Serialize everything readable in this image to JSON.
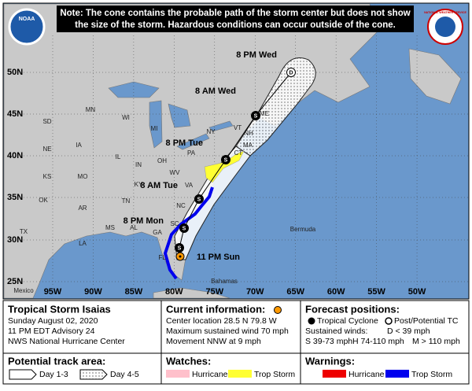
{
  "header": {
    "note_lines": [
      "Note: The cone contains the probable path of the storm center but does not show",
      "the size of the storm. Hazardous conditions can occur outside of the cone."
    ],
    "left_logo": "NOAA",
    "right_logo": "NATIONAL WEATHER SERVICE"
  },
  "map": {
    "lat_labels": [
      "50N",
      "45N",
      "40N",
      "35N",
      "30N",
      "25N"
    ],
    "lon_labels": [
      "95W",
      "90W",
      "85W",
      "80W",
      "75W",
      "70W",
      "65W",
      "60W",
      "55W",
      "50W"
    ],
    "places": [
      "MN",
      "WI",
      "MI",
      "SD",
      "NE",
      "IA",
      "IL",
      "IN",
      "OH",
      "KS",
      "MO",
      "KY",
      "WV",
      "VA",
      "OK",
      "AR",
      "TN",
      "NC",
      "SC",
      "GA",
      "AL",
      "MS",
      "LA",
      "TX",
      "FL",
      "PA",
      "NY",
      "VT",
      "NH",
      "ME",
      "MA",
      "CT",
      "Bermuda",
      "Mexico",
      "Bahamas"
    ],
    "track": [
      {
        "time": "11 PM Sun"
      },
      {
        "letter": "S"
      },
      {
        "time": "8 PM Mon",
        "letter": "S"
      },
      {
        "time": "8 AM Tue",
        "letter": "S"
      },
      {
        "time": "8 PM Tue",
        "letter": "S"
      },
      {
        "time": "8 AM Wed",
        "letter": "S"
      },
      {
        "time": "8 PM Wed",
        "letter": "D"
      }
    ]
  },
  "info": {
    "storm": "Tropical Storm Isaias",
    "date": "Sunday August 02, 2020",
    "advisory": "11 PM EDT Advisory 24",
    "center": "NWS National Hurricane Center",
    "current_title": "Current information:",
    "current": [
      "Center location 28.5 N 79.8 W",
      "Maximum sustained wind 70 mph",
      "Movement NNW at 9 mph"
    ],
    "forecast_title": "Forecast positions:",
    "tropical": "Tropical Cyclone",
    "post": "Post/Potential TC",
    "winds_title": "Sustained winds:",
    "wind_d": "D < 39 mph",
    "wind_s": "S 39-73 mph",
    "wind_h": "H 74-110 mph",
    "wind_m": "M > 110 mph",
    "track_area_title": "Potential track area:",
    "day13": "Day 1-3",
    "day45": "Day 4-5",
    "watches_title": "Watches:",
    "watch_hurricane": "Hurricane",
    "watch_ts": "Trop Storm",
    "warnings_title": "Warnings:",
    "warn_hurricane": "Hurricane",
    "warn_ts": "Trop Storm"
  }
}
